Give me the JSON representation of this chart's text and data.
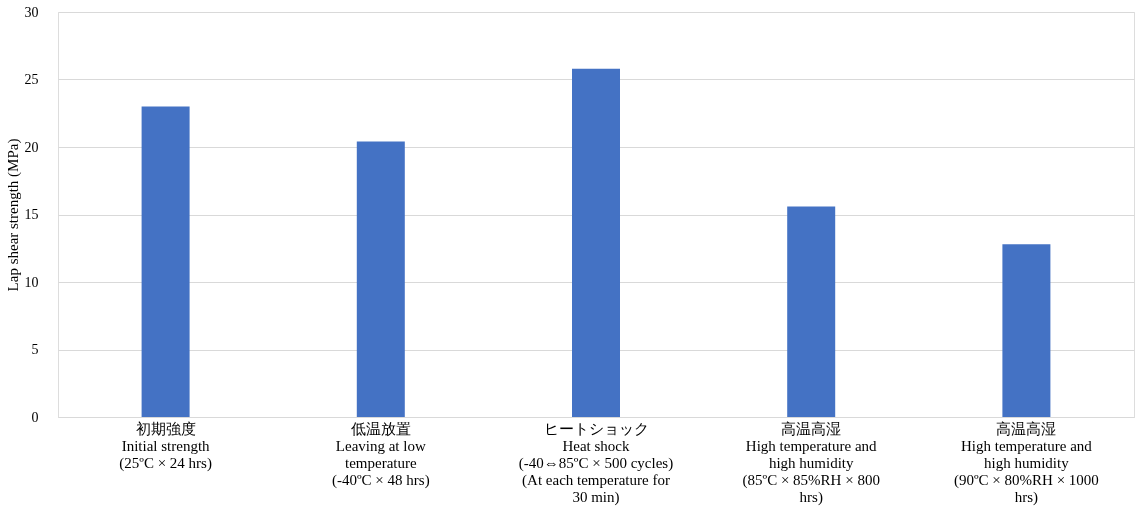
{
  "chart_data": {
    "type": "bar",
    "ylabel": "Lap shear strength (MPa)",
    "categories": [
      "初期強度\nInitial strength\n(25ºC × 24 hrs)",
      "低温放置\nLeaving at low\ntemperature\n(-40ºC × 48 hrs)",
      "ヒートショック\nHeat shock\n(-40⇔85ºC × 500 cycles)\n(At each temperature for\n30 min)",
      "高温高湿\nHigh temperature and\nhigh humidity\n(85ºC × 85%RH × 800\nhrs)",
      "高温高湿\nHigh temperature and\nhigh humidity\n(90ºC × 80%RH × 1000\nhrs)"
    ],
    "values": [
      23.0,
      20.4,
      25.8,
      15.6,
      12.8
    ],
    "color": "#4472c4",
    "ylim": [
      0,
      30
    ],
    "yticks": [
      0,
      5,
      10,
      15,
      20,
      25,
      30
    ],
    "grid": "y"
  }
}
